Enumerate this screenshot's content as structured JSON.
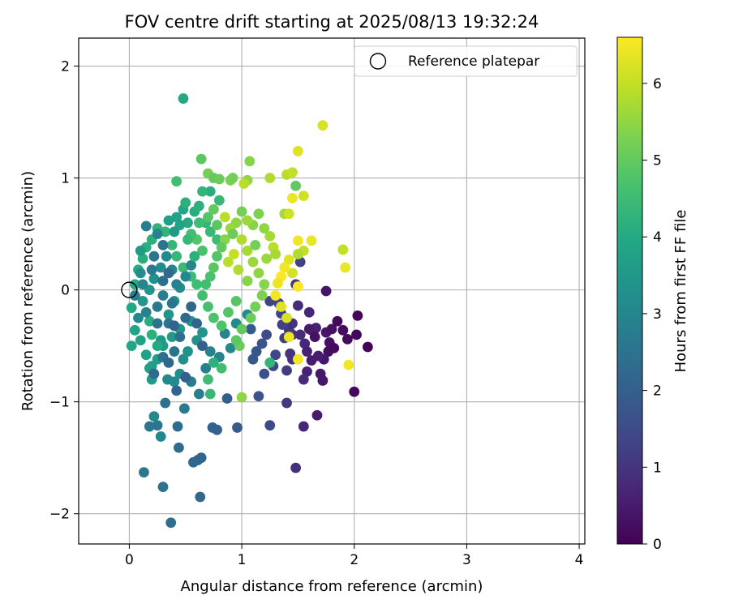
{
  "chart_data": {
    "type": "scatter",
    "title": "FOV centre drift starting at 2025/08/13 19:32:24",
    "xlabel": "Angular distance from reference (arcmin)",
    "ylabel": "Rotation from reference (arcmin)",
    "xlim": [
      -0.45,
      4.05
    ],
    "ylim": [
      -2.27,
      2.25
    ],
    "x_ticks": [
      0,
      1,
      2,
      3,
      4
    ],
    "y_ticks": [
      -2,
      -1,
      0,
      1,
      2
    ],
    "x_tick_labels": [
      "0",
      "1",
      "2",
      "3",
      "4"
    ],
    "y_tick_labels": [
      "−2",
      "−1",
      "0",
      "1",
      "2"
    ],
    "grid": true,
    "legend": {
      "placement": "top-right",
      "entries": [
        "Reference platepar"
      ]
    },
    "reference_point": {
      "x": 0,
      "y": 0
    },
    "colorbar": {
      "label": "Hours from first FF file",
      "range": [
        0,
        6.6
      ],
      "ticks": [
        0,
        1,
        2,
        3,
        4,
        5,
        6
      ],
      "tick_labels": [
        "0",
        "1",
        "2",
        "3",
        "4",
        "5",
        "6"
      ],
      "colormap": "viridis"
    },
    "points": [
      [
        2.12,
        -0.51,
        0.08
      ],
      [
        2.03,
        -0.23,
        0.1
      ],
      [
        2.0,
        -0.91,
        0.12
      ],
      [
        2.02,
        -0.4,
        0.15
      ],
      [
        1.94,
        -0.44,
        0.2
      ],
      [
        1.9,
        -0.36,
        0.22
      ],
      [
        1.78,
        -0.47,
        0.3
      ],
      [
        1.77,
        -0.55,
        0.28
      ],
      [
        1.75,
        -0.01,
        0.35
      ],
      [
        1.73,
        -0.62,
        0.4
      ],
      [
        1.7,
        -0.75,
        0.45
      ],
      [
        1.72,
        -0.81,
        0.42
      ],
      [
        1.67,
        -1.12,
        0.5
      ],
      [
        1.68,
        -0.59,
        0.55
      ],
      [
        1.66,
        -0.34,
        0.6
      ],
      [
        1.62,
        -0.36,
        0.62
      ],
      [
        1.6,
        -0.2,
        0.7
      ],
      [
        1.58,
        -0.73,
        0.65
      ],
      [
        1.56,
        -0.48,
        0.72
      ],
      [
        1.55,
        -1.22,
        0.75
      ],
      [
        1.55,
        -0.8,
        0.78
      ],
      [
        1.52,
        -0.4,
        0.8
      ],
      [
        1.5,
        -0.14,
        0.85
      ],
      [
        1.48,
        -1.59,
        0.9
      ],
      [
        1.45,
        -0.4,
        0.88
      ],
      [
        1.45,
        -0.62,
        0.95
      ],
      [
        1.43,
        -0.57,
        1.0
      ],
      [
        1.42,
        -0.36,
        1.05
      ],
      [
        1.4,
        -1.01,
        1.1
      ],
      [
        1.4,
        -0.72,
        1.15
      ],
      [
        1.38,
        -0.43,
        1.2
      ],
      [
        1.36,
        -0.31,
        1.25
      ],
      [
        1.35,
        -0.21,
        1.3
      ],
      [
        1.33,
        -0.12,
        1.35
      ],
      [
        1.3,
        -0.58,
        1.4
      ],
      [
        1.28,
        -0.68,
        1.45
      ],
      [
        1.25,
        -1.21,
        1.5
      ],
      [
        1.22,
        -0.4,
        1.55
      ],
      [
        1.2,
        -0.75,
        1.6
      ],
      [
        1.18,
        -0.48,
        1.65
      ],
      [
        1.15,
        -0.95,
        1.7
      ],
      [
        1.13,
        -0.55,
        1.75
      ],
      [
        1.1,
        -0.62,
        1.8
      ],
      [
        1.08,
        -0.35,
        1.85
      ],
      [
        1.52,
        0.25,
        1.3
      ],
      [
        1.48,
        0.05,
        1.1
      ],
      [
        1.45,
        -0.3,
        1.0
      ],
      [
        1.25,
        -0.1,
        1.3
      ],
      [
        0.96,
        -1.23,
        1.9
      ],
      [
        0.87,
        -0.97,
        1.95
      ],
      [
        0.78,
        -1.25,
        2.0
      ],
      [
        0.74,
        -1.23,
        2.05
      ],
      [
        0.64,
        -1.5,
        2.1
      ],
      [
        0.61,
        -1.52,
        2.15
      ],
      [
        0.57,
        -1.54,
        2.2
      ],
      [
        0.63,
        -1.85,
        2.25
      ],
      [
        0.44,
        -1.41,
        2.3
      ],
      [
        0.43,
        -1.22,
        2.35
      ],
      [
        0.37,
        -2.08,
        2.4
      ],
      [
        0.32,
        -1.01,
        2.45
      ],
      [
        0.3,
        -1.76,
        2.5
      ],
      [
        0.25,
        -1.21,
        2.55
      ],
      [
        0.18,
        -1.22,
        2.6
      ],
      [
        0.13,
        -1.63,
        2.65
      ],
      [
        0.49,
        -1.06,
        2.7
      ],
      [
        0.55,
        -0.82,
        2.75
      ],
      [
        0.62,
        -0.93,
        2.8
      ],
      [
        0.68,
        -0.7,
        2.85
      ],
      [
        0.72,
        -0.55,
        2.9
      ],
      [
        0.8,
        -0.6,
        2.95
      ],
      [
        0.85,
        -0.39,
        3.0
      ],
      [
        0.9,
        -0.52,
        3.05
      ],
      [
        0.95,
        -0.3,
        3.1
      ],
      [
        1.05,
        -0.22,
        3.15
      ],
      [
        0.28,
        -1.31,
        3.0
      ],
      [
        0.22,
        -1.13,
        3.05
      ],
      [
        0.34,
        -0.8,
        3.1
      ],
      [
        0.4,
        -0.82,
        3.15
      ],
      [
        0.45,
        -0.75,
        3.2
      ],
      [
        0.48,
        -0.62,
        3.25
      ],
      [
        0.52,
        -0.55,
        3.3
      ],
      [
        0.6,
        -0.45,
        3.35
      ],
      [
        0.65,
        -0.38,
        3.4
      ],
      [
        0.55,
        -0.28,
        3.45
      ],
      [
        0.45,
        -0.35,
        3.5
      ],
      [
        0.38,
        -0.42,
        3.55
      ],
      [
        0.3,
        -0.5,
        3.6
      ],
      [
        0.25,
        -0.62,
        3.65
      ],
      [
        0.2,
        -0.68,
        3.7
      ],
      [
        0.15,
        -0.58,
        3.75
      ],
      [
        0.1,
        -0.45,
        3.8
      ],
      [
        0.05,
        -0.36,
        3.85
      ],
      [
        0.02,
        -0.5,
        3.9
      ],
      [
        0.02,
        -0.16,
        3.95
      ],
      [
        0.05,
        0.05,
        4.0
      ],
      [
        0.08,
        0.18,
        4.05
      ],
      [
        0.12,
        0.28,
        4.1
      ],
      [
        0.15,
        0.38,
        4.15
      ],
      [
        0.2,
        0.45,
        4.2
      ],
      [
        0.25,
        0.55,
        4.25
      ],
      [
        0.32,
        0.52,
        4.3
      ],
      [
        0.38,
        0.4,
        4.35
      ],
      [
        0.42,
        0.3,
        4.4
      ],
      [
        0.48,
        0.2,
        4.45
      ],
      [
        0.55,
        0.12,
        4.5
      ],
      [
        0.6,
        0.05,
        4.55
      ],
      [
        0.65,
        -0.05,
        4.6
      ],
      [
        0.7,
        -0.15,
        4.65
      ],
      [
        0.75,
        -0.25,
        4.7
      ],
      [
        0.82,
        -0.32,
        4.75
      ],
      [
        0.88,
        -0.2,
        4.8
      ],
      [
        0.95,
        -0.1,
        4.85
      ],
      [
        0.2,
        -0.8,
        3.6
      ],
      [
        0.18,
        -0.7,
        3.7
      ],
      [
        0.28,
        -0.45,
        3.5
      ],
      [
        0.35,
        -0.22,
        3.4
      ],
      [
        0.4,
        -0.1,
        3.3
      ],
      [
        0.45,
        0.02,
        3.2
      ],
      [
        0.5,
        0.12,
        3.1
      ],
      [
        0.55,
        0.22,
        3.0
      ],
      [
        0.12,
        -0.1,
        3.5
      ],
      [
        0.18,
        0.0,
        3.4
      ],
      [
        0.22,
        0.1,
        3.3
      ],
      [
        0.28,
        0.2,
        3.2
      ],
      [
        0.33,
        0.3,
        3.1
      ],
      [
        0.38,
        0.18,
        3.0
      ],
      [
        0.42,
        0.05,
        2.9
      ],
      [
        0.3,
        -0.05,
        2.8
      ],
      [
        0.25,
        -0.15,
        2.7
      ],
      [
        0.35,
        -0.3,
        2.6
      ],
      [
        0.4,
        -0.55,
        2.5
      ],
      [
        0.45,
        -0.42,
        2.4
      ],
      [
        0.5,
        -0.25,
        2.3
      ],
      [
        0.55,
        -0.15,
        2.2
      ],
      [
        0.6,
        -0.3,
        2.1
      ],
      [
        0.65,
        -0.5,
        2.0
      ],
      [
        0.15,
        0.57,
        2.8
      ],
      [
        0.25,
        0.5,
        2.9
      ],
      [
        0.3,
        0.4,
        2.5
      ],
      [
        0.22,
        0.3,
        2.6
      ],
      [
        0.1,
        0.35,
        3.6
      ],
      [
        0.35,
        0.62,
        3.7
      ],
      [
        0.42,
        0.65,
        3.8
      ],
      [
        0.48,
        0.72,
        3.9
      ],
      [
        0.52,
        0.6,
        4.0
      ],
      [
        0.58,
        0.7,
        4.1
      ],
      [
        0.62,
        0.75,
        4.2
      ],
      [
        0.68,
        0.6,
        4.3
      ],
      [
        0.72,
        0.52,
        4.4
      ],
      [
        0.78,
        0.45,
        4.5
      ],
      [
        0.42,
        0.97,
        4.6
      ],
      [
        0.48,
        1.71,
        4.0
      ],
      [
        0.64,
        1.17,
        4.9
      ],
      [
        0.7,
        1.04,
        5.2
      ],
      [
        0.75,
        1.0,
        5.0
      ],
      [
        0.8,
        0.99,
        5.1
      ],
      [
        0.9,
        0.98,
        5.3
      ],
      [
        0.92,
        1.0,
        5.2
      ],
      [
        1.05,
        0.98,
        5.5
      ],
      [
        1.07,
        1.15,
        5.4
      ],
      [
        1.02,
        0.95,
        5.9
      ],
      [
        1.25,
        1.0,
        5.8
      ],
      [
        1.4,
        1.03,
        5.9
      ],
      [
        1.45,
        1.05,
        6.0
      ],
      [
        1.5,
        1.24,
        6.3
      ],
      [
        1.72,
        1.47,
        6.2
      ],
      [
        1.55,
        0.84,
        6.1
      ],
      [
        1.45,
        0.82,
        6.4
      ],
      [
        1.48,
        0.93,
        5.0
      ],
      [
        1.38,
        0.68,
        5.7
      ],
      [
        1.42,
        0.68,
        6.1
      ],
      [
        1.5,
        0.44,
        6.5
      ],
      [
        1.62,
        0.44,
        6.4
      ],
      [
        1.55,
        0.35,
        6.0
      ],
      [
        1.5,
        0.32,
        5.8
      ],
      [
        1.45,
        0.15,
        6.2
      ],
      [
        1.42,
        0.27,
        6.3
      ],
      [
        1.38,
        0.2,
        6.5
      ],
      [
        1.35,
        0.12,
        6.6
      ],
      [
        1.32,
        0.06,
        6.4
      ],
      [
        1.3,
        -0.05,
        6.5
      ],
      [
        1.35,
        -0.15,
        6.3
      ],
      [
        1.4,
        -0.25,
        6.2
      ],
      [
        1.42,
        -0.42,
        6.4
      ],
      [
        1.5,
        -0.62,
        6.5
      ],
      [
        1.9,
        0.36,
        6.0
      ],
      [
        1.92,
        0.2,
        6.4
      ],
      [
        1.95,
        -0.67,
        6.5
      ],
      [
        1.5,
        0.03,
        6.6
      ],
      [
        1.28,
        0.38,
        5.9
      ],
      [
        1.25,
        0.48,
        5.7
      ],
      [
        1.2,
        0.55,
        5.5
      ],
      [
        1.15,
        0.68,
        5.3
      ],
      [
        1.1,
        0.58,
        5.4
      ],
      [
        1.05,
        0.62,
        5.6
      ],
      [
        1.0,
        0.7,
        5.2
      ],
      [
        0.95,
        0.6,
        5.5
      ],
      [
        0.9,
        0.55,
        5.6
      ],
      [
        0.85,
        0.45,
        5.4
      ],
      [
        0.82,
        0.38,
        5.0
      ],
      [
        0.78,
        0.3,
        4.8
      ],
      [
        0.75,
        0.2,
        4.9
      ],
      [
        0.72,
        0.12,
        4.7
      ],
      [
        0.68,
        0.05,
        4.6
      ],
      [
        1.0,
        0.45,
        5.8
      ],
      [
        1.05,
        0.35,
        5.7
      ],
      [
        1.1,
        0.25,
        5.6
      ],
      [
        1.15,
        0.15,
        5.5
      ],
      [
        1.2,
        0.05,
        5.4
      ],
      [
        1.18,
        -0.05,
        5.3
      ],
      [
        1.12,
        -0.15,
        5.2
      ],
      [
        1.08,
        -0.25,
        5.1
      ],
      [
        1.0,
        -0.35,
        5.0
      ],
      [
        0.98,
        -0.5,
        5.1
      ],
      [
        0.95,
        -0.45,
        4.9
      ],
      [
        1.0,
        -0.96,
        5.5
      ],
      [
        1.25,
        -0.65,
        4.3
      ],
      [
        0.82,
        -0.7,
        4.6
      ],
      [
        0.7,
        -0.8,
        4.5
      ],
      [
        0.72,
        -0.93,
        4.4
      ],
      [
        0.75,
        -0.65,
        4.2
      ],
      [
        0.25,
        -0.5,
        4.0
      ],
      [
        0.2,
        -0.4,
        4.2
      ],
      [
        0.18,
        -0.28,
        4.1
      ],
      [
        0.88,
        0.25,
        5.9
      ],
      [
        0.93,
        0.32,
        6.0
      ],
      [
        0.97,
        0.18,
        5.8
      ],
      [
        1.22,
        0.28,
        5.6
      ],
      [
        1.3,
        0.32,
        5.7
      ],
      [
        1.05,
        0.08,
        5.4
      ],
      [
        1.12,
        0.4,
        5.2
      ],
      [
        0.85,
        0.65,
        5.9
      ],
      [
        0.92,
        0.5,
        5.1
      ],
      [
        0.78,
        0.58,
        4.9
      ],
      [
        0.65,
        0.35,
        4.7
      ],
      [
        0.6,
        0.45,
        4.8
      ],
      [
        0.55,
        0.5,
        4.6
      ],
      [
        0.62,
        0.6,
        4.5
      ],
      [
        0.7,
        0.65,
        4.8
      ],
      [
        0.75,
        0.72,
        5.0
      ],
      [
        0.8,
        0.8,
        4.4
      ],
      [
        0.72,
        0.88,
        4.1
      ],
      [
        0.65,
        0.88,
        4.3
      ],
      [
        0.5,
        0.78,
        4.2
      ],
      [
        0.45,
        0.58,
        3.8
      ],
      [
        0.4,
        0.52,
        3.6
      ],
      [
        0.52,
        0.45,
        4.4
      ],
      [
        0.58,
        0.3,
        4.2
      ],
      [
        0.1,
        0.15,
        3.2
      ],
      [
        0.12,
        0.05,
        3.0
      ],
      [
        0.15,
        -0.2,
        2.9
      ],
      [
        0.08,
        -0.25,
        3.1
      ],
      [
        0.05,
        -0.05,
        2.8
      ],
      [
        0.2,
        0.18,
        2.7
      ],
      [
        0.25,
        -0.3,
        2.5
      ],
      [
        0.3,
        -0.6,
        2.4
      ],
      [
        0.22,
        -0.75,
        2.3
      ],
      [
        0.35,
        -0.65,
        2.2
      ],
      [
        0.42,
        -0.9,
        2.1
      ],
      [
        0.5,
        -0.78,
        2.0
      ],
      [
        0.38,
        -0.12,
        2.6
      ],
      [
        0.3,
        0.08,
        2.4
      ],
      [
        0.35,
        0.15,
        2.3
      ],
      [
        0.4,
        -0.32,
        2.1
      ],
      [
        1.6,
        -0.35,
        0.5
      ],
      [
        1.65,
        -0.42,
        0.3
      ],
      [
        1.58,
        -0.55,
        0.6
      ],
      [
        1.62,
        -0.63,
        0.5
      ],
      [
        1.75,
        -0.38,
        0.4
      ],
      [
        1.82,
        -0.52,
        0.2
      ],
      [
        1.8,
        -0.35,
        0.3
      ],
      [
        1.85,
        -0.28,
        0.15
      ]
    ]
  }
}
